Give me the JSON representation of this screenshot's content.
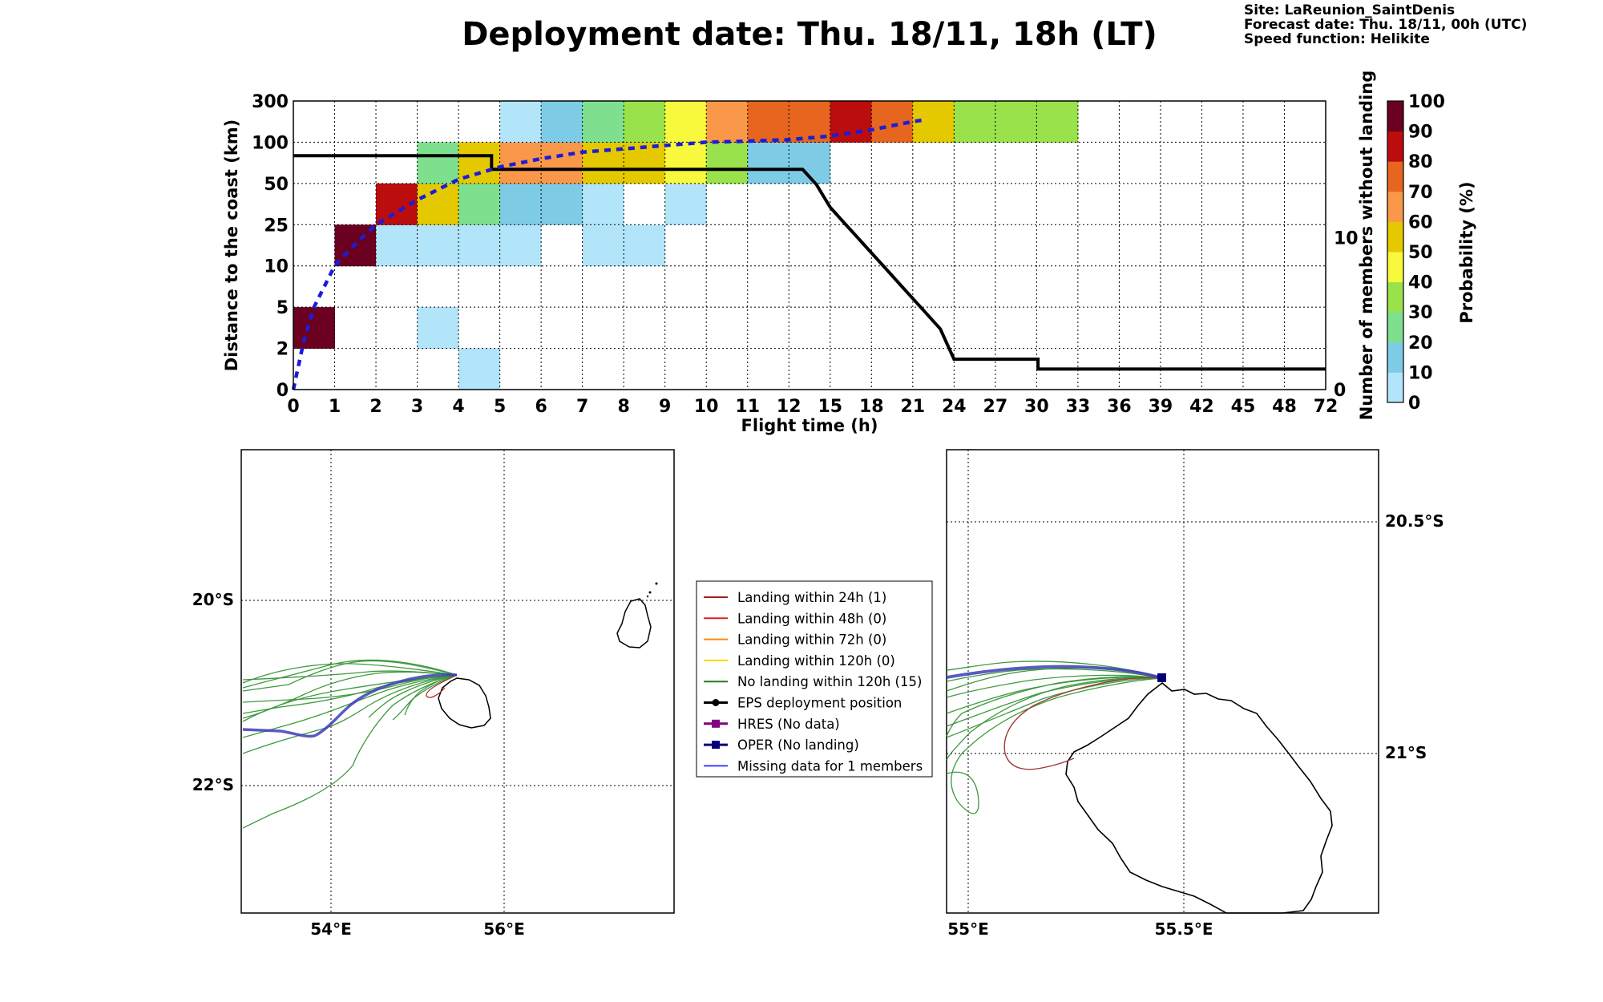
{
  "header": {
    "title": "Deployment date: Thu. 18/11, 18h (LT)",
    "site": "Site: LaReunion_SaintDenis",
    "forecast": "Forecast date: Thu. 18/11, 00h (UTC)",
    "speed": "Speed function: Helikite"
  },
  "chart_data": [
    {
      "type": "heatmap",
      "xlabel": "Flight time (h)",
      "ylabel": "Distance to the coast (km)",
      "y2label": "Number of members without landing",
      "colorbar_label": "Probability (%)",
      "x_ticks": [
        "0",
        "1",
        "2",
        "3",
        "4",
        "5",
        "6",
        "7",
        "8",
        "9",
        "10",
        "11",
        "12",
        "15",
        "18",
        "21",
        "24",
        "27",
        "30",
        "33",
        "36",
        "39",
        "42",
        "45",
        "48",
        "72"
      ],
      "y_ticks": [
        "0",
        "2",
        "5",
        "10",
        "25",
        "50",
        "100",
        "300"
      ],
      "y2_ticks": [
        "0",
        "10"
      ],
      "y2lim": [
        0,
        19
      ],
      "colorbar_ticks": [
        "0",
        "10",
        "20",
        "30",
        "40",
        "50",
        "60",
        "70",
        "80",
        "90",
        "100"
      ],
      "colorbar_colors": [
        "#b3e5fa",
        "#7ecbe6",
        "#7ee08f",
        "#99e24b",
        "#f8f83c",
        "#e4c900",
        "#f99848",
        "#e6661f",
        "#bb0d0d",
        "#6c0020"
      ],
      "cells": [
        {
          "x": 0,
          "y": 1,
          "p": 95
        },
        {
          "x": 1,
          "y": 3,
          "p": 95
        },
        {
          "x": 2,
          "y": 3,
          "p": 5
        },
        {
          "x": 3,
          "y": 3,
          "p": 5
        },
        {
          "x": 4,
          "y": 3,
          "p": 5
        },
        {
          "x": 5,
          "y": 3,
          "p": 5
        },
        {
          "x": 7,
          "y": 3,
          "p": 5
        },
        {
          "x": 8,
          "y": 3,
          "p": 5
        },
        {
          "x": 2,
          "y": 4,
          "p": 85
        },
        {
          "x": 3,
          "y": 4,
          "p": 55
        },
        {
          "x": 4,
          "y": 4,
          "p": 25
        },
        {
          "x": 5,
          "y": 4,
          "p": 15
        },
        {
          "x": 6,
          "y": 4,
          "p": 15
        },
        {
          "x": 7,
          "y": 4,
          "p": 5
        },
        {
          "x": 9,
          "y": 4,
          "p": 5
        },
        {
          "x": 3,
          "y": 5,
          "p": 25
        },
        {
          "x": 4,
          "y": 5,
          "p": 55
        },
        {
          "x": 5,
          "y": 5,
          "p": 65
        },
        {
          "x": 6,
          "y": 5,
          "p": 65
        },
        {
          "x": 7,
          "y": 5,
          "p": 55
        },
        {
          "x": 8,
          "y": 5,
          "p": 55
        },
        {
          "x": 9,
          "y": 5,
          "p": 45
        },
        {
          "x": 10,
          "y": 5,
          "p": 35
        },
        {
          "x": 11,
          "y": 5,
          "p": 15
        },
        {
          "x": 12,
          "y": 5,
          "p": 15
        },
        {
          "x": 5,
          "y": 6,
          "p": 5
        },
        {
          "x": 6,
          "y": 6,
          "p": 15
        },
        {
          "x": 7,
          "y": 6,
          "p": 25
        },
        {
          "x": 8,
          "y": 6,
          "p": 35
        },
        {
          "x": 9,
          "y": 6,
          "p": 45
        },
        {
          "x": 10,
          "y": 6,
          "p": 65
        },
        {
          "x": 11,
          "y": 6,
          "p": 75
        },
        {
          "x": 12,
          "y": 6,
          "p": 75
        },
        {
          "x": 13,
          "y": 6,
          "p": 85
        },
        {
          "x": 14,
          "y": 6,
          "p": 75
        },
        {
          "x": 15,
          "y": 6,
          "p": 55
        },
        {
          "x": 16,
          "y": 6,
          "p": 35
        },
        {
          "x": 17,
          "y": 6,
          "p": 35
        },
        {
          "x": 18,
          "y": 6,
          "p": 35
        },
        {
          "x": 3,
          "y": 1,
          "p": 5
        },
        {
          "x": 4,
          "y": 0,
          "p": 5
        }
      ],
      "series": [
        {
          "name": "Number of members without landing",
          "x": [
            0,
            4.8,
            4.8,
            5,
            11.5,
            11.6,
            11.6,
            12,
            12,
            13,
            13,
            14,
            14,
            15,
            15,
            16,
            16,
            17,
            17,
            18,
            18,
            19,
            19,
            20,
            20,
            21,
            21,
            22,
            22,
            23,
            23,
            23.5,
            23.5,
            24,
            24,
            30.1,
            30.1,
            72
          ],
          "y": [
            15.4,
            15.4,
            14.5,
            14.5,
            14.5,
            14.5,
            14.5,
            14.5,
            14.5,
            14.5,
            14.5,
            13.5,
            13.5,
            12,
            12,
            11,
            11,
            10,
            10,
            9,
            9,
            8,
            8,
            7,
            7,
            6,
            6,
            5,
            5,
            4,
            4,
            3,
            3,
            2,
            2,
            2,
            1.35,
            1.35
          ]
        },
        {
          "name": "Median distance (dashed)",
          "x": [
            0,
            0.25,
            0.5,
            1,
            1.5,
            2,
            3,
            4,
            5,
            6,
            7,
            8,
            9,
            10,
            11,
            12,
            15,
            18,
            21,
            22
          ],
          "y_km": [
            0,
            2.5,
            5,
            10,
            18,
            25,
            40,
            55,
            70,
            80,
            88,
            92,
            96,
            100,
            105,
            112,
            130,
            160,
            200,
            210
          ]
        }
      ]
    },
    {
      "type": "map",
      "lon_ticks": [
        "54°E",
        "56°E"
      ],
      "lat_ticks": [
        "20°S",
        "22°S"
      ]
    },
    {
      "type": "map",
      "lon_ticks": [
        "55°E",
        "55.5°E"
      ],
      "lat_ticks": [
        "20.5°S",
        "21°S"
      ]
    }
  ],
  "legend": {
    "items": [
      {
        "label": "Landing within 24h (1)",
        "color": "#a02020",
        "marker": "none"
      },
      {
        "label": "Landing within 48h (0)",
        "color": "#e02020",
        "marker": "none"
      },
      {
        "label": "Landing within 72h (0)",
        "color": "#ff8c00",
        "marker": "none"
      },
      {
        "label": "Landing within 120h (0)",
        "color": "#ffd700",
        "marker": "none"
      },
      {
        "label": "No landing within 120h (15)",
        "color": "#1e7d1e",
        "marker": "none"
      },
      {
        "label": "EPS deployment position",
        "color": "#000000",
        "marker": "circle"
      },
      {
        "label": "HRES (No data)",
        "color": "#800080",
        "marker": "square"
      },
      {
        "label": "OPER (No landing)",
        "color": "#00007a",
        "marker": "square"
      },
      {
        "label": "Missing data for 1 members",
        "color": "#4040ff",
        "marker": "none"
      }
    ]
  }
}
